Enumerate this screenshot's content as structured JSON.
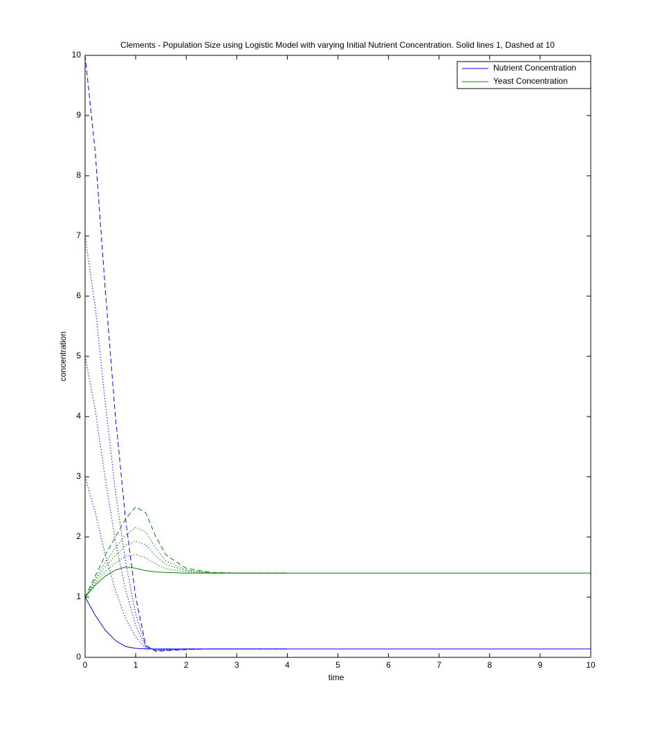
{
  "chart_data": {
    "type": "line",
    "title": "Clements - Population Size using Logistic Model with varying Initial Nutrient Concentration. Solid lines 1, Dashed at 10",
    "xlabel": "time",
    "ylabel": "concentration",
    "x": [
      0,
      0.2,
      0.4,
      0.6,
      0.8,
      1,
      1.2,
      1.4,
      1.6,
      2,
      2.5,
      3,
      4,
      5,
      10
    ],
    "series": [
      {
        "name": "Nutrient Concentration",
        "color": "#0000ff",
        "linestyle": "solid",
        "values": [
          1,
          0.7,
          0.45,
          0.28,
          0.18,
          0.15,
          0.14,
          0.14,
          0.14,
          0.14,
          0.14,
          0.14,
          0.14,
          0.14,
          0.14
        ]
      },
      {
        "name": "Yeast Concentration",
        "color": "#008000",
        "linestyle": "solid",
        "values": [
          1,
          1.2,
          1.35,
          1.45,
          1.5,
          1.48,
          1.44,
          1.42,
          1.41,
          1.4,
          1.4,
          1.4,
          1.4,
          1.4,
          1.4
        ]
      },
      {
        "color": "#0000ff",
        "linestyle": "dashed",
        "values": [
          10,
          8.4,
          6.1,
          4,
          2.3,
          1,
          0.2,
          0.1,
          0.11,
          0.13,
          0.14,
          0.14,
          0.14,
          null,
          null
        ]
      },
      {
        "color": "#008000",
        "linestyle": "dashed",
        "values": [
          1,
          1.35,
          1.7,
          2.0,
          2.3,
          2.5,
          2.4,
          2.0,
          1.7,
          1.48,
          1.41,
          1.4,
          1.4,
          null,
          null
        ]
      },
      {
        "color": "#0000ff",
        "linestyle": "dotted",
        "values": [
          3,
          2.41,
          1.7,
          1.11,
          0.65,
          0.34,
          0.15,
          0.13,
          0.13,
          0.14,
          0.14,
          0.14,
          0.14,
          null,
          null
        ]
      },
      {
        "color": "#0000ff",
        "linestyle": "dotted",
        "values": [
          5,
          4.12,
          2.96,
          1.93,
          1.12,
          0.53,
          0.17,
          0.12,
          0.13,
          0.14,
          0.14,
          0.14,
          0.14,
          null,
          null
        ]
      },
      {
        "color": "#0000ff",
        "linestyle": "dotted",
        "values": [
          7,
          5.83,
          4.22,
          2.76,
          1.59,
          0.72,
          0.18,
          0.11,
          0.12,
          0.13,
          0.14,
          0.14,
          0.14,
          null,
          null
        ]
      },
      {
        "color": "#008000",
        "linestyle": "dotted",
        "values": [
          1,
          1.23,
          1.43,
          1.57,
          1.68,
          1.71,
          1.65,
          1.55,
          1.47,
          1.42,
          1.4,
          1.4,
          1.4,
          null,
          null
        ]
      },
      {
        "color": "#008000",
        "linestyle": "dotted",
        "values": [
          1,
          1.27,
          1.51,
          1.69,
          1.86,
          1.93,
          1.87,
          1.68,
          1.54,
          1.44,
          1.4,
          1.4,
          1.4,
          null,
          null
        ]
      },
      {
        "color": "#008000",
        "linestyle": "dotted",
        "values": [
          1,
          1.3,
          1.58,
          1.82,
          2.03,
          2.16,
          2.08,
          1.81,
          1.6,
          1.45,
          1.41,
          1.4,
          1.4,
          null,
          null
        ]
      }
    ],
    "xlim": [
      0,
      10
    ],
    "xticks": [
      0,
      1,
      2,
      3,
      4,
      5,
      6,
      7,
      8,
      9,
      10
    ],
    "ylim": [
      0,
      10
    ],
    "yticks": [
      0,
      1,
      2,
      3,
      4,
      5,
      6,
      7,
      8,
      9,
      10
    ],
    "grid": false,
    "legend": "northeast"
  }
}
